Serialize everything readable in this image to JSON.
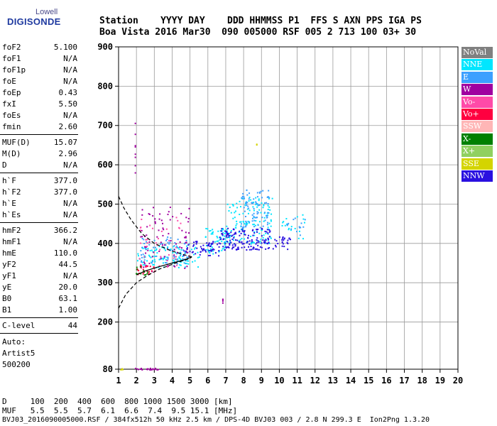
{
  "logo": {
    "lowell": "Lowell",
    "digisonde": "DIGISONDE"
  },
  "header": {
    "row1": "Station    YYYY DAY    DDD HHMMSS P1  FFS S AXN PPS IGA PS",
    "row2": "Boa Vista 2016 Mar30  090 005000 RSF 005 2 713 100 03+ 30"
  },
  "params": {
    "group1": [
      {
        "name": "foF2",
        "value": "5.100"
      },
      {
        "name": "foF1",
        "value": "N/A"
      },
      {
        "name": "foF1p",
        "value": "N/A"
      },
      {
        "name": "foE",
        "value": "N/A"
      },
      {
        "name": "foEp",
        "value": "0.43"
      },
      {
        "name": "fxI",
        "value": "5.50"
      },
      {
        "name": "foEs",
        "value": "N/A"
      },
      {
        "name": "fmin",
        "value": "2.60"
      }
    ],
    "group2": [
      {
        "name": "MUF(D)",
        "value": "15.07"
      },
      {
        "name": "M(D)",
        "value": "2.96"
      },
      {
        "name": "D",
        "value": "N/A"
      }
    ],
    "group3": [
      {
        "name": "h`F",
        "value": "377.0"
      },
      {
        "name": "h`F2",
        "value": "377.0"
      },
      {
        "name": "h`E",
        "value": "N/A"
      },
      {
        "name": "h`Es",
        "value": "N/A"
      }
    ],
    "group4": [
      {
        "name": "hmF2",
        "value": "366.2"
      },
      {
        "name": "hmF1",
        "value": "N/A"
      },
      {
        "name": "hmE",
        "value": "110.0"
      },
      {
        "name": "yF2",
        "value": "44.5"
      },
      {
        "name": "yF1",
        "value": "N/A"
      },
      {
        "name": "yE",
        "value": "20.0"
      },
      {
        "name": "B0",
        "value": "63.1"
      },
      {
        "name": "B1",
        "value": "1.00"
      }
    ],
    "clevel": {
      "name": "C-level",
      "value": "44"
    },
    "auto": {
      "line1": "Auto:",
      "line2": "Artist5",
      "line3": "500200"
    }
  },
  "legend": [
    {
      "label": "NoVal",
      "bg": "#808080",
      "fg": "#ffffff"
    },
    {
      "label": "NNE",
      "bg": "#00e6ff",
      "fg": "#ffffff"
    },
    {
      "label": "E",
      "bg": "#3ca0ff",
      "fg": "#ffffff"
    },
    {
      "label": "W",
      "bg": "#a000a0",
      "fg": "#ffffff"
    },
    {
      "label": "Vo-",
      "bg": "#ff4aa8",
      "fg": "#ffffff"
    },
    {
      "label": "Vo+",
      "bg": "#ff0040",
      "fg": "#ffffff"
    },
    {
      "label": "SSW",
      "bg": "#ffb6b6",
      "fg": "#ffffff"
    },
    {
      "label": "X-",
      "bg": "#008000",
      "fg": "#ffffff"
    },
    {
      "label": "X+",
      "bg": "#90d060",
      "fg": "#ffffff"
    },
    {
      "label": "SSE",
      "bg": "#d4d400",
      "fg": "#ffffff"
    },
    {
      "label": "NNW",
      "bg": "#2a10e0",
      "fg": "#ffffff"
    }
  ],
  "footer": {
    "distance_row": "D     100  200  400  600  800 1000 1500 3000 [km]",
    "muf_row": "MUF   5.5  5.5  5.7  6.1  6.6  7.4  9.5 15.1 [MHz]",
    "file_row": "BVJ03_2016090005000.RSF / 384fx512h 50 kHz 2.5 km / DPS-4D BVJ03 003 / 2.8 N 299.3 E  Ion2Png 1.3.20"
  },
  "chart_data": {
    "type": "scatter",
    "title": "",
    "xlabel": "",
    "ylabel": "",
    "xlim": [
      1,
      20
    ],
    "ylim": [
      80,
      900
    ],
    "x_ticks": [
      1,
      2,
      3,
      4,
      5,
      6,
      7,
      8,
      9,
      10,
      11,
      12,
      13,
      14,
      15,
      16,
      17,
      18,
      19,
      20
    ],
    "y_ticks": [
      80,
      200,
      300,
      400,
      500,
      600,
      700,
      800,
      900
    ],
    "grid": true,
    "legend_position": "right",
    "series": [
      {
        "name": "NNE",
        "color": "#00e6ff",
        "clusters": [
          {
            "x": [
              2.0,
              5.5
            ],
            "y": [
              340,
              395
            ],
            "density": 110
          },
          {
            "x": [
              5.8,
              7.2
            ],
            "y": [
              375,
              440
            ],
            "density": 60
          },
          {
            "x": [
              7.0,
              9.6
            ],
            "y": [
              400,
              520
            ],
            "density": 140
          },
          {
            "x": [
              10.0,
              11.4
            ],
            "y": [
              410,
              480
            ],
            "density": 18
          }
        ]
      },
      {
        "name": "E",
        "color": "#3ca0ff",
        "clusters": [
          {
            "x": [
              2.2,
              5.0
            ],
            "y": [
              350,
              420
            ],
            "density": 70
          },
          {
            "x": [
              7.8,
              9.4
            ],
            "y": [
              440,
              540
            ],
            "density": 80
          },
          {
            "x": [
              10.4,
              11.5
            ],
            "y": [
              420,
              470
            ],
            "density": 14
          }
        ]
      },
      {
        "name": "W",
        "color": "#a000a0",
        "clusters": [
          {
            "x": [
              1.9,
              1.9
            ],
            "y": [
              570,
              715
            ],
            "density": 8
          },
          {
            "x": [
              2.2,
              5.0
            ],
            "y": [
              330,
              500
            ],
            "density": 80
          },
          {
            "x": [
              6.8,
              6.8
            ],
            "y": [
              250,
              262
            ],
            "density": 4
          },
          {
            "x": [
              1.8,
              3.3
            ],
            "y": [
              80,
              84
            ],
            "density": 20
          }
        ]
      },
      {
        "name": "Vo-",
        "color": "#ff4aa8",
        "clusters": [
          {
            "x": [
              2.1,
              4.6
            ],
            "y": [
              340,
              470
            ],
            "density": 40
          }
        ]
      },
      {
        "name": "Vo+",
        "color": "#ff0040",
        "clusters": [
          {
            "x": [
              1.9,
              3.0
            ],
            "y": [
              322,
              345
            ],
            "density": 25
          }
        ]
      },
      {
        "name": "X-",
        "color": "#008000",
        "clusters": [
          {
            "x": [
              1.9,
              2.6
            ],
            "y": [
              320,
              345
            ],
            "density": 12
          }
        ]
      },
      {
        "name": "SSE",
        "color": "#d4d400",
        "clusters": [
          {
            "x": [
              1.0,
              1.2
            ],
            "y": [
              80,
              84
            ],
            "density": 4
          },
          {
            "x": [
              8.7,
              8.7
            ],
            "y": [
              652,
              660
            ],
            "density": 2
          }
        ]
      },
      {
        "name": "NNW",
        "color": "#2a10e0",
        "clusters": [
          {
            "x": [
              4.6,
              6.6
            ],
            "y": [
              370,
              410
            ],
            "density": 60
          },
          {
            "x": [
              6.6,
              9.5
            ],
            "y": [
              385,
              440
            ],
            "density": 150
          },
          {
            "x": [
              9.6,
              10.6
            ],
            "y": [
              385,
              420
            ],
            "density": 25
          }
        ]
      }
    ],
    "traces": [
      {
        "name": "profile-solid",
        "style": "solid",
        "x": [
          2.0,
          2.5,
          3.2,
          4.0,
          4.8,
          5.1
        ],
        "y": [
          320,
          330,
          340,
          350,
          360,
          366
        ]
      },
      {
        "name": "profile-dashed",
        "style": "dashed",
        "x": [
          1.0,
          1.4,
          2.0,
          2.6,
          3.3,
          4.2,
          5.0,
          5.1
        ],
        "y": [
          235,
          270,
          300,
          318,
          335,
          350,
          362,
          366
        ]
      },
      {
        "name": "profile-upper-dashed",
        "style": "dashed",
        "x": [
          1.0,
          1.3,
          1.7,
          2.3,
          3.0,
          3.9,
          4.6,
          5.0,
          5.1
        ],
        "y": [
          520,
          490,
          460,
          425,
          400,
          382,
          372,
          367,
          366
        ]
      }
    ]
  }
}
